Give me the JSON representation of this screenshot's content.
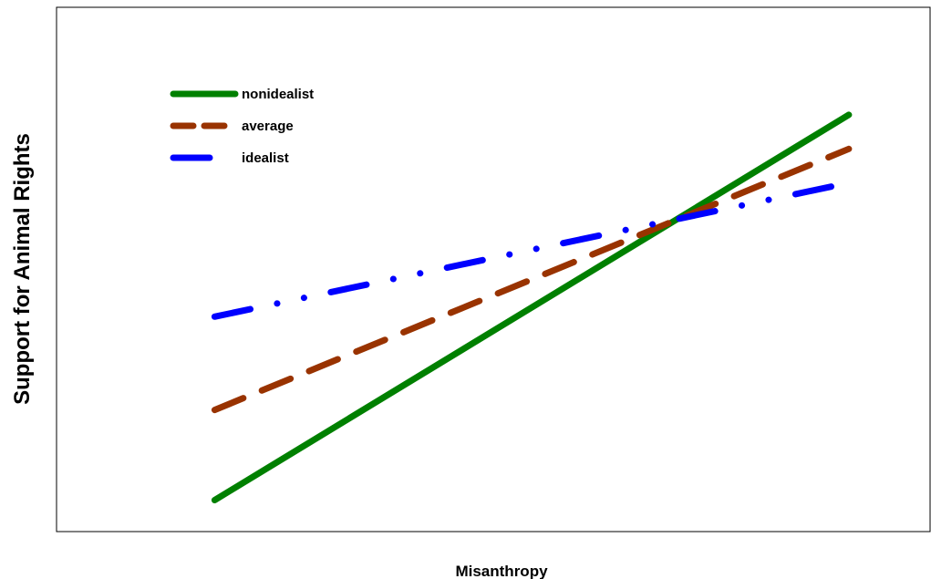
{
  "chart_data": {
    "type": "line",
    "title": "",
    "xlabel": "Misanthropy",
    "ylabel": "Support for Animal Rights",
    "xlim": [
      0,
      1
    ],
    "ylim": [
      0,
      1
    ],
    "grid": false,
    "legend_position": "top-left",
    "series": [
      {
        "name": "nonidealist",
        "color": "#008000",
        "style": "solid",
        "x": [
          0.181,
          0.907
        ],
        "y": [
          0.06,
          0.795
        ]
      },
      {
        "name": "average",
        "color": "#993300",
        "style": "dashed",
        "x": [
          0.181,
          0.907
        ],
        "y": [
          0.232,
          0.73
        ]
      },
      {
        "name": "idealist",
        "color": "#0000ff",
        "style": "dashdot",
        "x": [
          0.181,
          0.907
        ],
        "y": [
          0.41,
          0.665
        ]
      }
    ]
  }
}
